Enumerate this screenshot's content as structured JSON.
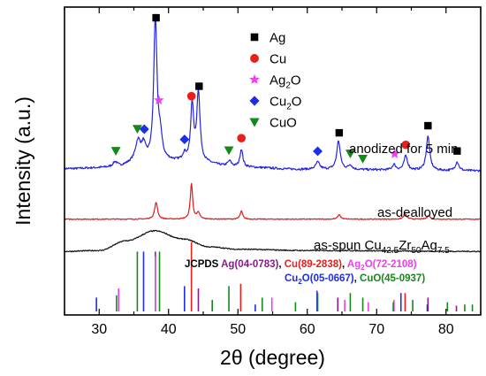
{
  "chart_data": {
    "type": "line",
    "xlabel": "2θ (degree)",
    "ylabel": "Intensity (a.u.)",
    "xlim": [
      25,
      85
    ],
    "x_ticks": [
      30,
      40,
      50,
      60,
      70,
      80
    ],
    "y_tick_labels": false,
    "grid": false,
    "phases": [
      {
        "key": "Ag",
        "label_main": "Ag",
        "label_sub": "",
        "label_tail": "",
        "marker": "square",
        "color": "#000000"
      },
      {
        "key": "Cu",
        "label_main": "Cu",
        "label_sub": "",
        "label_tail": "",
        "marker": "circle",
        "color": "#e8201b"
      },
      {
        "key": "Ag2O",
        "label_main": "Ag",
        "label_sub": "2",
        "label_tail": "O",
        "marker": "star",
        "color": "#f23df2"
      },
      {
        "key": "Cu2O",
        "label_main": "Cu",
        "label_sub": "2",
        "label_tail": "O",
        "marker": "diamond",
        "color": "#1e2de6"
      },
      {
        "key": "CuO",
        "label_main": "CuO",
        "label_sub": "",
        "label_tail": "",
        "marker": "triangle",
        "color": "#15881a"
      }
    ],
    "series": [
      {
        "name": "anodized for 5 min",
        "label_parts": [
          {
            "t": "anodized for 5 min",
            "sub": false
          }
        ],
        "color": "#2525e0",
        "baseline": 8.05,
        "noise": 0.06,
        "background": [
          [
            25,
            0.12
          ],
          [
            32,
            0.18
          ],
          [
            36,
            0.5
          ],
          [
            39,
            0.55
          ],
          [
            44,
            0.45
          ],
          [
            50,
            0.2
          ],
          [
            60,
            0.08
          ],
          [
            85,
            0.0
          ]
        ],
        "peaks": [
          {
            "x": 32.3,
            "h": 0.3,
            "w": 0.4
          },
          {
            "x": 35.6,
            "h": 1.1,
            "w": 0.45
          },
          {
            "x": 36.4,
            "h": 0.8,
            "w": 0.35
          },
          {
            "x": 38.1,
            "h": 8.0,
            "w": 0.28
          },
          {
            "x": 38.8,
            "h": 1.2,
            "w": 0.3
          },
          {
            "x": 42.3,
            "h": 0.4,
            "w": 0.35
          },
          {
            "x": 43.4,
            "h": 3.2,
            "w": 0.25
          },
          {
            "x": 44.3,
            "h": 3.9,
            "w": 0.28
          },
          {
            "x": 48.8,
            "h": 0.3,
            "w": 0.35
          },
          {
            "x": 50.5,
            "h": 1.0,
            "w": 0.25
          },
          {
            "x": 61.5,
            "h": 0.4,
            "w": 0.35
          },
          {
            "x": 64.5,
            "h": 1.6,
            "w": 0.3
          },
          {
            "x": 66.2,
            "h": 0.25,
            "w": 0.3
          },
          {
            "x": 72.5,
            "h": 0.3,
            "w": 0.3
          },
          {
            "x": 74.2,
            "h": 0.8,
            "w": 0.3
          },
          {
            "x": 77.4,
            "h": 1.9,
            "w": 0.3
          },
          {
            "x": 81.6,
            "h": 0.5,
            "w": 0.3
          }
        ]
      },
      {
        "name": "as-dealloyed",
        "label_parts": [
          {
            "t": "as-dealloyed",
            "sub": false
          }
        ],
        "color": "#e01b1b",
        "baseline": 5.35,
        "noise": 0.025,
        "background": [
          [
            25,
            0.0
          ],
          [
            85,
            0.0
          ]
        ],
        "peaks": [
          {
            "x": 38.2,
            "h": 0.95,
            "w": 0.25
          },
          {
            "x": 43.3,
            "h": 2.0,
            "w": 0.2
          },
          {
            "x": 44.3,
            "h": 0.35,
            "w": 0.25
          },
          {
            "x": 50.5,
            "h": 0.45,
            "w": 0.22
          },
          {
            "x": 64.6,
            "h": 0.25,
            "w": 0.25
          },
          {
            "x": 74.1,
            "h": 0.3,
            "w": 0.25
          },
          {
            "x": 77.5,
            "h": 0.2,
            "w": 0.25
          }
        ]
      },
      {
        "name": "as-spun Cu42.5Zr50Ag7.5",
        "label_parts": [
          {
            "t": "as-spun Cu",
            "sub": false
          },
          {
            "t": "42.5",
            "sub": true
          },
          {
            "t": "Zr",
            "sub": false
          },
          {
            "t": "50",
            "sub": true
          },
          {
            "t": "Ag",
            "sub": false
          },
          {
            "t": "7.5",
            "sub": true
          }
        ],
        "color": "#111111",
        "baseline": 3.55,
        "noise": 0.03,
        "background": [
          [
            25,
            0.0
          ],
          [
            30,
            0.05
          ],
          [
            34,
            0.6
          ],
          [
            38,
            1.15
          ],
          [
            42,
            0.7
          ],
          [
            46,
            0.25
          ],
          [
            50,
            0.12
          ],
          [
            60,
            0.05
          ],
          [
            85,
            0.0
          ]
        ],
        "peaks": []
      }
    ],
    "phase_markers": {
      "Ag": [
        38.2,
        44.4,
        64.6,
        77.4,
        81.6
      ],
      "Cu": [
        43.3,
        50.5,
        74.2
      ],
      "Ag2O": [
        38.6,
        72.6
      ],
      "Cu2O": [
        36.5,
        42.3,
        61.5
      ],
      "CuO": [
        32.4,
        35.5,
        48.7,
        66.2,
        68.0
      ]
    },
    "reference": {
      "title": "JCPDS",
      "cards": [
        {
          "phase": "Ag",
          "main": "Ag",
          "sub": "",
          "tail": "",
          "card": "(04-0783)",
          "color": "#8b1a8b"
        },
        {
          "phase": "Cu",
          "main": "Cu",
          "sub": "",
          "tail": "",
          "card": "(89-2838)",
          "color": "#e8201b"
        },
        {
          "phase": "Ag2O",
          "main": "Ag",
          "sub": "2",
          "tail": "O",
          "card": "(72-2108)",
          "color": "#ee3ee8"
        },
        {
          "phase": "Cu2O",
          "main": "Cu",
          "sub": "2",
          "tail": "O",
          "card": "(05-0667)",
          "color": "#1e2de6"
        },
        {
          "phase": "CuO",
          "main": "CuO",
          "sub": "",
          "tail": "",
          "card": "(45-0937)",
          "color": "#15881a"
        }
      ],
      "lines": {
        "Ag": [
          [
            38.1,
            2.6
          ],
          [
            44.3,
            1.0
          ],
          [
            64.4,
            0.6
          ],
          [
            77.4,
            0.6
          ],
          [
            81.5,
            0.25
          ]
        ],
        "Cu": [
          [
            43.3,
            3.0
          ],
          [
            50.4,
            1.2
          ],
          [
            74.1,
            0.8
          ]
        ],
        "Ag2O": [
          [
            32.8,
            1.0
          ],
          [
            38.1,
            2.4
          ],
          [
            54.9,
            0.6
          ],
          [
            65.4,
            0.5
          ],
          [
            68.8,
            0.4
          ],
          [
            72.5,
            0.5
          ]
        ],
        "Cu2O": [
          [
            29.6,
            0.6
          ],
          [
            36.4,
            2.6
          ],
          [
            42.3,
            1.1
          ],
          [
            52.5,
            0.3
          ],
          [
            61.4,
            0.9
          ],
          [
            73.5,
            0.8
          ],
          [
            77.3,
            0.3
          ]
        ],
        "CuO": [
          [
            32.5,
            0.7
          ],
          [
            35.5,
            2.6
          ],
          [
            38.7,
            2.6
          ],
          [
            46.3,
            0.5
          ],
          [
            48.7,
            1.1
          ],
          [
            53.5,
            0.6
          ],
          [
            58.3,
            0.4
          ],
          [
            61.5,
            0.8
          ],
          [
            66.2,
            0.8
          ],
          [
            68.0,
            0.6
          ],
          [
            72.4,
            0.4
          ],
          [
            75.2,
            0.5
          ],
          [
            80.2,
            0.4
          ],
          [
            82.7,
            0.3
          ],
          [
            83.8,
            0.3
          ]
        ]
      }
    }
  }
}
